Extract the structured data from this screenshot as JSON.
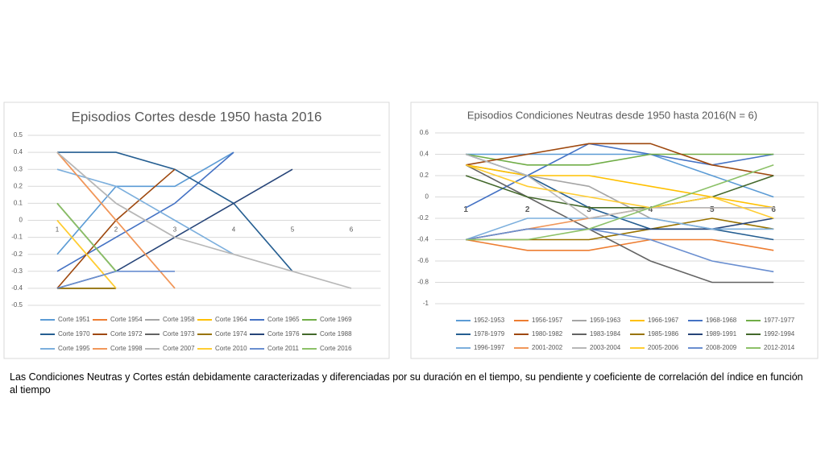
{
  "chart_data": [
    {
      "type": "line",
      "title": "Episodios Cortes desde 1950 hasta 2016",
      "categories": [
        "1",
        "2",
        "3",
        "4",
        "5",
        "6"
      ],
      "ylim": [
        -0.5,
        0.5
      ],
      "yticks": [
        -0.5,
        -0.4,
        -0.3,
        -0.2,
        -0.1,
        0,
        0.1,
        0.2,
        0.3,
        0.4,
        0.5
      ],
      "grid": true,
      "series": [
        {
          "name": "Corte 1951",
          "color": "#5b9bd5",
          "values": [
            -0.2,
            0.2,
            0.2,
            0.4,
            null,
            null
          ]
        },
        {
          "name": "Corte 1954",
          "color": "#ed7d31",
          "values": [
            0.4,
            0,
            -0.4,
            null,
            null,
            null
          ]
        },
        {
          "name": "Corte 1958",
          "color": "#a5a5a5",
          "values": [
            0.4,
            0.1,
            -0.1,
            null,
            null,
            null
          ]
        },
        {
          "name": "Corte 1964",
          "color": "#ffc000",
          "values": [
            0,
            -0.4,
            null,
            null,
            null,
            null
          ]
        },
        {
          "name": "Corte 1965",
          "color": "#4472c4",
          "values": [
            -0.3,
            -0.1,
            0.1,
            0.4,
            null,
            null
          ]
        },
        {
          "name": "Corte 1969",
          "color": "#70ad47",
          "values": [
            0.1,
            -0.3,
            null,
            null,
            null,
            null
          ]
        },
        {
          "name": "Corte 1970",
          "color": "#255e91",
          "values": [
            0.4,
            0.4,
            0.3,
            0.1,
            -0.3,
            null
          ]
        },
        {
          "name": "Corte 1972",
          "color": "#9e480e",
          "values": [
            -0.4,
            0,
            0.3,
            null,
            null,
            null
          ]
        },
        {
          "name": "Corte 1973",
          "color": "#636363",
          "values": [
            -0.4,
            -0.4,
            null,
            null,
            null,
            null
          ]
        },
        {
          "name": "Corte 1974",
          "color": "#997300",
          "values": [
            -0.4,
            -0.4,
            null,
            null,
            null,
            null
          ]
        },
        {
          "name": "Corte 1976",
          "color": "#264478",
          "values": [
            -0.4,
            -0.3,
            -0.1,
            0.1,
            0.3,
            null
          ]
        },
        {
          "name": "Corte 1988",
          "color": "#43682b",
          "values": [
            0.1,
            -0.3,
            null,
            null,
            null,
            null
          ]
        },
        {
          "name": "Corte 1995",
          "color": "#7cafdd",
          "values": [
            0.3,
            0.2,
            0,
            -0.2,
            null,
            null
          ]
        },
        {
          "name": "Corte 1998",
          "color": "#f1975a",
          "values": [
            0.4,
            0,
            -0.4,
            null,
            null,
            null
          ]
        },
        {
          "name": "Corte 2007",
          "color": "#b7b7b7",
          "values": [
            0.4,
            0.1,
            -0.1,
            -0.2,
            -0.3,
            -0.4
          ]
        },
        {
          "name": "Corte 2010",
          "color": "#ffcd33",
          "values": [
            0,
            -0.4,
            null,
            null,
            null,
            null
          ]
        },
        {
          "name": "Corte 2011",
          "color": "#698ed0",
          "values": [
            -0.4,
            -0.3,
            -0.3,
            null,
            null,
            null
          ]
        },
        {
          "name": "Corte 2016",
          "color": "#8cc168",
          "values": [
            0.1,
            -0.3,
            null,
            null,
            null,
            null
          ]
        }
      ]
    },
    {
      "type": "line",
      "title": "Episodios Condiciones Neutras desde 1950 hasta 2016(N = 6)",
      "categories": [
        "1",
        "2",
        "3",
        "4",
        "5",
        "6"
      ],
      "ylim": [
        -1,
        0.6
      ],
      "yticks": [
        -1,
        -0.8,
        -0.6,
        -0.4,
        -0.2,
        0,
        0.2,
        0.4,
        0.6
      ],
      "grid": true,
      "series": [
        {
          "name": "1952-1953",
          "color": "#5b9bd5",
          "values": [
            0.4,
            0.4,
            0.4,
            0.4,
            0.2,
            0
          ]
        },
        {
          "name": "1956-1957",
          "color": "#ed7d31",
          "values": [
            -0.4,
            -0.5,
            -0.5,
            -0.4,
            -0.4,
            -0.5
          ]
        },
        {
          "name": "1959-1963",
          "color": "#a5a5a5",
          "values": [
            0.3,
            0.2,
            0.1,
            -0.2,
            -0.3,
            -0.3
          ]
        },
        {
          "name": "1966-1967",
          "color": "#ffc000",
          "values": [
            0.3,
            0.2,
            0.2,
            0.1,
            0,
            -0.1
          ]
        },
        {
          "name": "1968-1968",
          "color": "#4472c4",
          "values": [
            -0.1,
            0.2,
            0.5,
            0.4,
            0.3,
            0.4
          ]
        },
        {
          "name": "1977-1977",
          "color": "#70ad47",
          "values": [
            0.4,
            0.3,
            0.3,
            0.4,
            0.4,
            0.4
          ]
        },
        {
          "name": "1978-1979",
          "color": "#255e91",
          "values": [
            0.4,
            0.2,
            -0.1,
            -0.3,
            -0.3,
            -0.4
          ]
        },
        {
          "name": "1980-1982",
          "color": "#9e480e",
          "values": [
            0.3,
            0.4,
            0.5,
            0.5,
            0.3,
            0.2
          ]
        },
        {
          "name": "1983-1984",
          "color": "#636363",
          "values": [
            0.3,
            0,
            -0.3,
            -0.6,
            -0.8,
            -0.8
          ]
        },
        {
          "name": "1985-1986",
          "color": "#997300",
          "values": [
            -0.4,
            -0.4,
            -0.4,
            -0.3,
            -0.2,
            -0.3
          ]
        },
        {
          "name": "1989-1991",
          "color": "#264478",
          "values": [
            -0.4,
            -0.3,
            -0.3,
            -0.3,
            -0.3,
            -0.2
          ]
        },
        {
          "name": "1992-1994",
          "color": "#43682b",
          "values": [
            0.2,
            0,
            -0.1,
            -0.1,
            0,
            0.2
          ]
        },
        {
          "name": "1996-1997",
          "color": "#7cafdd",
          "values": [
            -0.4,
            -0.2,
            -0.2,
            -0.2,
            -0.3,
            -0.3
          ]
        },
        {
          "name": "2001-2002",
          "color": "#f1975a",
          "values": [
            -0.4,
            -0.3,
            -0.2,
            -0.1,
            -0.1,
            -0.1
          ]
        },
        {
          "name": "2003-2004",
          "color": "#b7b7b7",
          "values": [
            0.4,
            0.2,
            -0.2,
            -0.1,
            -0.1,
            -0.1
          ]
        },
        {
          "name": "2005-2006",
          "color": "#ffcd33",
          "values": [
            0.3,
            0.1,
            0,
            -0.1,
            0,
            -0.2
          ]
        },
        {
          "name": "2008-2009",
          "color": "#698ed0",
          "values": [
            -0.4,
            -0.3,
            -0.3,
            -0.4,
            -0.6,
            -0.7
          ]
        },
        {
          "name": "2012-2014",
          "color": "#8cc168",
          "values": [
            -0.4,
            -0.4,
            -0.3,
            -0.1,
            0.1,
            0.3
          ]
        }
      ]
    }
  ],
  "caption": "Las Condiciones Neutras y Cortes están debidamente caracterizadas y diferenciadas por su duración en el tiempo, su pendiente y coeficiente de correlación del índice en función al tiempo"
}
